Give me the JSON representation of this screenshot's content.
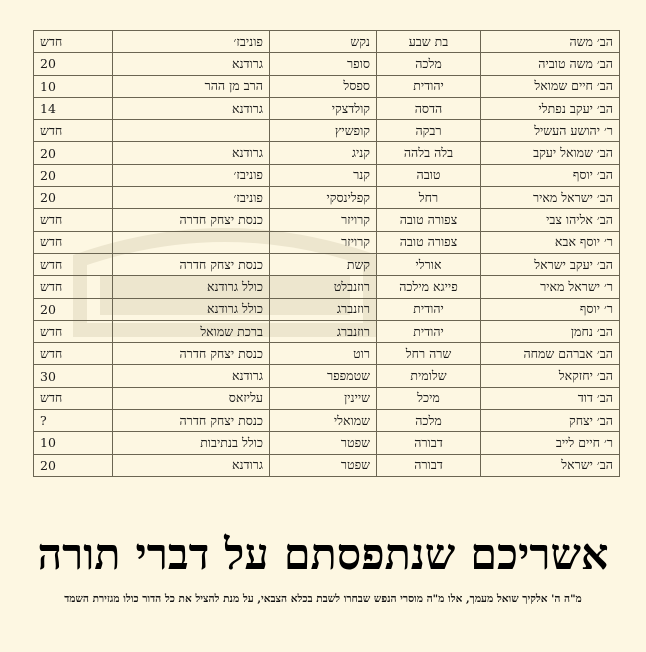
{
  "table": {
    "rows": [
      [
        "הב׳ משה",
        "בת שבע",
        "נקש",
        "פוניבז׳",
        "חדש"
      ],
      [
        "הב׳ משה טוביה",
        "מלכה",
        "סופר",
        "גרודנא",
        "20"
      ],
      [
        "הב׳ חיים שמואל",
        "יהודית",
        "ספסל",
        "הרב מן ההר",
        "10"
      ],
      [
        "הב׳ יעקב נפתלי",
        "הדסה",
        "קולדצקי",
        "גרודנא",
        "14"
      ],
      [
        "ר׳ יהושע העשיל",
        "רבקה",
        "קופשיץ",
        "",
        "חדש"
      ],
      [
        "הב׳ שמואל יעקב",
        "בלה בלהה",
        "קניג",
        "גרודנא",
        "20"
      ],
      [
        "הב׳ יוסף",
        "טובה",
        "קנר",
        "פוניבז׳",
        "20"
      ],
      [
        "הב׳ ישראל מאיר",
        "רחל",
        "קפלינסקי",
        "פוניבז׳",
        "20"
      ],
      [
        "הב׳ אליהו צבי",
        "צפורה טובה",
        "קרויזר",
        "כנסת יצחק חדרה",
        "חדש"
      ],
      [
        "ר׳ יוסף אבא",
        "צפורה  טובה",
        "קרויזר",
        "",
        "חדש"
      ],
      [
        "הב׳ יעקב ישראל",
        "אורלי",
        "קשת",
        "כנסת יצחק חדרה",
        "חדש"
      ],
      [
        "ר׳ ישראל מאיר",
        "פייגא מילכה",
        "רוזנבלט",
        "כולל גרודנא",
        "חדש"
      ],
      [
        "ר׳ יוסף",
        "יהודית",
        "רוזנברג",
        "כולל גרודנא",
        "20"
      ],
      [
        "הב׳ נחמן",
        "יהודית",
        "רוזנברג",
        "ברכת שמואל",
        "חדש"
      ],
      [
        "הב׳ אברהם שמחה",
        "שרה רחל",
        "רוט",
        "כנסת יצחק חדרה",
        "חדש"
      ],
      [
        "הב׳ יחזקאל",
        "שלומית",
        "שטמפפר",
        "גרודנא",
        "30"
      ],
      [
        "הב׳ דוד",
        "מיכל",
        "שיינין",
        "עליזאס",
        "חדש"
      ],
      [
        "הב׳ יצחק",
        "מלכה",
        "שמואלי",
        "כנסת יצחק חדרה",
        "?"
      ],
      [
        "ר׳ חיים לייב",
        "דבורה",
        "שפטר",
        "כולל בנתיבות",
        "10"
      ],
      [
        "הב׳ ישראל",
        "דבורה",
        "שפטר",
        "גרודנא",
        "20"
      ]
    ]
  },
  "title": "אשריכם שנתפסתם על דברי תורה",
  "subtitle": "מ\"ה ה' אלקיך שואל מעמך, אלו מ\"ה מוסרי הנפש שבחרו לשבת בכלא הצבאי, על מנת להציל את כל הדור כולו מגזירת השמד",
  "colors": {
    "background": "#fdf7e2",
    "border": "#6b6552",
    "text": "#1a1a1a"
  }
}
